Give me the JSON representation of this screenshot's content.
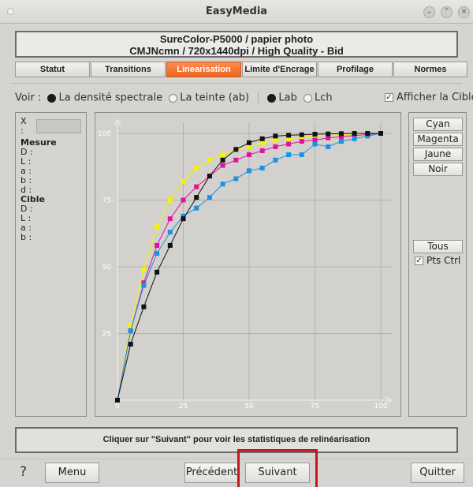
{
  "window": {
    "title": "EasyMedia"
  },
  "header": {
    "line1": "SureColor-P5000 / papier photo",
    "line2": "CMJNcmn / 720x1440dpi / High Quality - Bid"
  },
  "tabs": [
    {
      "label": "Statut",
      "active": false
    },
    {
      "label": "Transitions",
      "active": false
    },
    {
      "label": "Linearisation",
      "active": true
    },
    {
      "label": "Limite d'Encrage",
      "active": false
    },
    {
      "label": "Profilage",
      "active": false
    },
    {
      "label": "Normes",
      "active": false
    }
  ],
  "voir": {
    "label": "Voir :",
    "opt_density": "La densité spectrale",
    "opt_teinte": "La teinte (ab)",
    "opt_lab": "Lab",
    "opt_lch": "Lch",
    "show_target": "Afficher la Cible"
  },
  "left_panel": {
    "x_label": "X :",
    "mesure_title": "Mesure",
    "mesure_fields": [
      "D :",
      "L :",
      "a :",
      "b :",
      "d :"
    ],
    "cible_title": "Cible",
    "cible_fields": [
      "D :",
      "L :",
      "a :",
      "b :"
    ]
  },
  "right_panel": {
    "cyan": "Cyan",
    "magenta": "Magenta",
    "jaune": "Jaune",
    "noir": "Noir",
    "tous": "Tous",
    "pts_ctrl": "Pts Ctrl"
  },
  "message": "Cliquer sur \"Suivant\" pour voir les statistiques de relinéarisation",
  "bottom": {
    "help": "?",
    "menu": "Menu",
    "precedent": "Précédent",
    "suivant": "Suivant",
    "quitter": "Quitter"
  },
  "chart_data": {
    "type": "line",
    "x_ticks": [
      0,
      25,
      50,
      75,
      100
    ],
    "y_ticks": [
      25,
      50,
      75,
      100
    ],
    "xlim": [
      0,
      100
    ],
    "ylim": [
      0,
      100
    ],
    "grid": true,
    "series": [
      {
        "color": "#f4f400",
        "x": [
          0,
          5,
          10,
          15,
          20,
          25,
          30,
          35,
          40,
          45,
          50,
          55,
          60,
          65,
          70,
          75,
          80,
          85,
          90,
          95,
          100
        ],
        "y": [
          0,
          28,
          49,
          65,
          75,
          82,
          87,
          90,
          92,
          94,
          95,
          96.5,
          97.5,
          98,
          98.5,
          99,
          99.3,
          99.5,
          99.7,
          99.9,
          100
        ]
      },
      {
        "color": "#e0149b",
        "x": [
          0,
          5,
          10,
          15,
          20,
          25,
          30,
          35,
          40,
          45,
          50,
          55,
          60,
          65,
          70,
          75,
          80,
          85,
          90,
          95,
          100
        ],
        "y": [
          0,
          26,
          44,
          58,
          68,
          75,
          80,
          84,
          88,
          90,
          92,
          93.5,
          95,
          96,
          97,
          97.5,
          98.3,
          98.7,
          99.2,
          99.6,
          100
        ]
      },
      {
        "color": "#1a93e0",
        "x": [
          0,
          5,
          10,
          15,
          20,
          25,
          30,
          35,
          40,
          45,
          50,
          55,
          60,
          65,
          70,
          75,
          80,
          85,
          90,
          95,
          100
        ],
        "y": [
          0,
          26,
          43,
          55,
          63,
          69,
          72,
          76,
          81,
          83,
          86,
          87,
          90,
          92,
          92,
          96,
          95,
          97,
          98,
          99,
          100
        ]
      },
      {
        "color": "#111111",
        "x": [
          0,
          5,
          10,
          15,
          20,
          25,
          30,
          35,
          40,
          45,
          50,
          55,
          60,
          65,
          70,
          75,
          80,
          85,
          90,
          95,
          100
        ],
        "y": [
          0,
          21,
          35,
          48,
          58,
          68,
          76,
          84,
          90,
          94,
          96.5,
          98,
          99,
          99.3,
          99.5,
          99.7,
          99.8,
          99.9,
          100,
          100,
          100
        ]
      }
    ]
  }
}
